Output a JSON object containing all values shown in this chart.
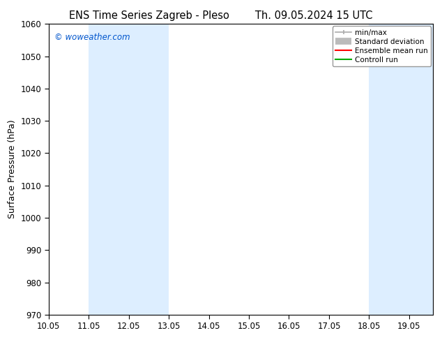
{
  "title_left": "ENS Time Series Zagreb - Pleso",
  "title_right": "Th. 09.05.2024 15 UTC",
  "ylabel": "Surface Pressure (hPa)",
  "ylim": [
    970,
    1060
  ],
  "yticks": [
    970,
    980,
    990,
    1000,
    1010,
    1020,
    1030,
    1040,
    1050,
    1060
  ],
  "xlim_start": 10.0,
  "xlim_end": 19.6,
  "xtick_labels": [
    "10.05",
    "11.05",
    "12.05",
    "13.05",
    "14.05",
    "15.05",
    "16.05",
    "17.05",
    "18.05",
    "19.05"
  ],
  "xtick_positions": [
    10.0,
    11.0,
    12.0,
    13.0,
    14.0,
    15.0,
    16.0,
    17.0,
    18.0,
    19.0
  ],
  "bg_color": "#ffffff",
  "plot_bg_color": "#ffffff",
  "shade_regions": [
    {
      "x_start": 11.0,
      "x_end": 13.0
    },
    {
      "x_start": 18.0,
      "x_end": 19.6
    }
  ],
  "shade_color": "#ddeeff",
  "watermark": "© woweather.com",
  "watermark_color": "#0055cc",
  "title_fontsize": 10.5,
  "label_fontsize": 9,
  "tick_fontsize": 8.5,
  "legend_fontsize": 7.5
}
